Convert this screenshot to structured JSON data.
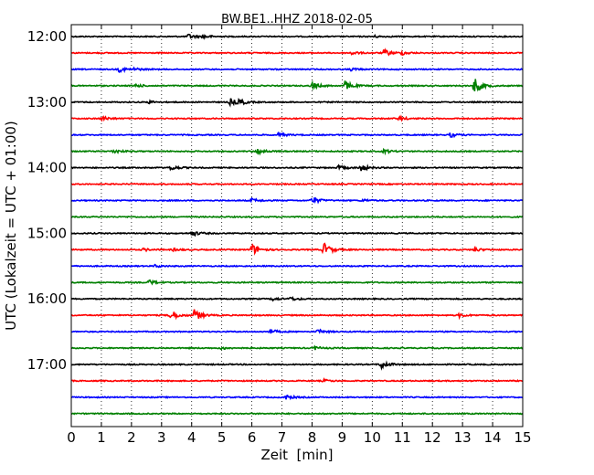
{
  "chart_data": {
    "type": "line",
    "title": "BW.BE1..HHZ 2018-02-05",
    "xlabel": "Zeit  [min]",
    "ylabel": "UTC (Lokalzeit = UTC + 01:00)",
    "xlim": [
      0,
      15
    ],
    "x_ticks": [
      "0",
      "1",
      "2",
      "3",
      "4",
      "5",
      "6",
      "7",
      "8",
      "9",
      "10",
      "11",
      "12",
      "13",
      "14",
      "15"
    ],
    "y_tick_labels": [
      "12:00",
      "13:00",
      "14:00",
      "15:00",
      "16:00",
      "17:00"
    ],
    "grid": "vertical dotted at each minute",
    "color_cycle": [
      "#000000",
      "#ff0000",
      "#0000ff",
      "#008000"
    ],
    "traces": [
      {
        "start": "12:00",
        "events": [
          [
            3.9,
            0.4
          ],
          [
            4.4,
            0.25
          ],
          [
            10.0,
            0.2
          ]
        ]
      },
      {
        "start": "12:15",
        "events": [
          [
            9.3,
            0.3
          ],
          [
            10.4,
            0.55
          ],
          [
            11.0,
            0.25
          ]
        ]
      },
      {
        "start": "12:30",
        "events": [
          [
            1.6,
            0.4
          ],
          [
            2.1,
            0.2
          ],
          [
            9.3,
            0.2
          ]
        ]
      },
      {
        "start": "12:45",
        "events": [
          [
            2.1,
            0.3
          ],
          [
            8.0,
            0.55
          ],
          [
            9.1,
            0.8
          ],
          [
            13.4,
            1.4
          ]
        ]
      },
      {
        "start": "13:00",
        "events": [
          [
            2.6,
            0.2
          ],
          [
            5.3,
            0.55
          ],
          [
            5.6,
            0.4
          ]
        ]
      },
      {
        "start": "13:15",
        "events": [
          [
            1.05,
            0.35
          ],
          [
            10.9,
            0.3
          ]
        ]
      },
      {
        "start": "13:30",
        "events": [
          [
            6.9,
            0.3
          ],
          [
            12.6,
            0.35
          ]
        ]
      },
      {
        "start": "13:45",
        "events": [
          [
            1.4,
            0.35
          ],
          [
            6.2,
            0.5
          ],
          [
            10.4,
            0.3
          ]
        ]
      },
      {
        "start": "14:00",
        "events": [
          [
            3.3,
            0.45
          ],
          [
            8.9,
            0.35
          ],
          [
            9.6,
            0.6
          ]
        ]
      },
      {
        "start": "14:15",
        "events": []
      },
      {
        "start": "14:30",
        "events": [
          [
            6.0,
            0.3
          ],
          [
            8.0,
            0.6
          ],
          [
            9.7,
            0.2
          ]
        ]
      },
      {
        "start": "14:45",
        "events": []
      },
      {
        "start": "15:00",
        "events": [
          [
            4.0,
            0.5
          ]
        ]
      },
      {
        "start": "15:15",
        "events": [
          [
            2.4,
            0.2
          ],
          [
            3.4,
            0.2
          ],
          [
            6.0,
            0.95
          ],
          [
            8.4,
            1.1
          ],
          [
            13.4,
            0.3
          ]
        ]
      },
      {
        "start": "15:30",
        "events": [
          [
            2.8,
            0.2
          ]
        ]
      },
      {
        "start": "15:45",
        "events": [
          [
            2.6,
            0.4
          ]
        ]
      },
      {
        "start": "16:00",
        "events": [
          [
            6.7,
            0.25
          ],
          [
            7.3,
            0.25
          ]
        ]
      },
      {
        "start": "16:15",
        "events": [
          [
            3.3,
            0.9
          ],
          [
            4.1,
            0.95
          ],
          [
            12.9,
            0.3
          ]
        ]
      },
      {
        "start": "16:30",
        "events": [
          [
            6.6,
            0.4
          ],
          [
            8.2,
            0.35
          ]
        ]
      },
      {
        "start": "16:45",
        "events": [
          [
            5.0,
            0.2
          ],
          [
            8.1,
            0.25
          ]
        ]
      },
      {
        "start": "17:00",
        "events": [
          [
            10.3,
            0.7
          ]
        ]
      },
      {
        "start": "17:15",
        "events": [
          [
            8.4,
            0.2
          ]
        ]
      },
      {
        "start": "17:30",
        "events": [
          [
            7.1,
            0.4
          ]
        ]
      },
      {
        "start": "17:45",
        "events": []
      }
    ]
  }
}
